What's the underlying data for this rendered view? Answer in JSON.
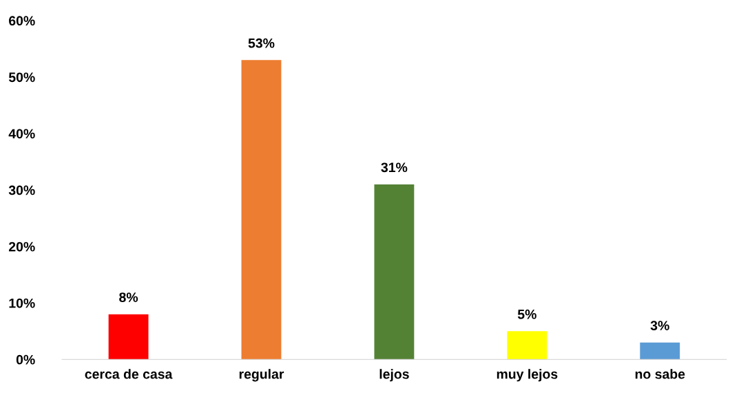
{
  "chart_data": {
    "type": "bar",
    "categories": [
      "cerca de casa",
      "regular",
      "lejos",
      "muy lejos",
      "no sabe"
    ],
    "values": [
      8,
      53,
      31,
      5,
      3
    ],
    "colors": [
      "#ff0000",
      "#ed7d31",
      "#548235",
      "#ffff00",
      "#5b9bd5"
    ],
    "value_labels": [
      "8%",
      "53%",
      "31%",
      "5%",
      "3%"
    ],
    "ylim": [
      0,
      60
    ],
    "yticks": [
      {
        "value": 0,
        "label": "0%"
      },
      {
        "value": 10,
        "label": "10%"
      },
      {
        "value": 20,
        "label": "20%"
      },
      {
        "value": 30,
        "label": "30%"
      },
      {
        "value": 40,
        "label": "40%"
      },
      {
        "value": 50,
        "label": "50%"
      },
      {
        "value": 60,
        "label": "60%"
      }
    ],
    "grid": false,
    "legend": false
  }
}
